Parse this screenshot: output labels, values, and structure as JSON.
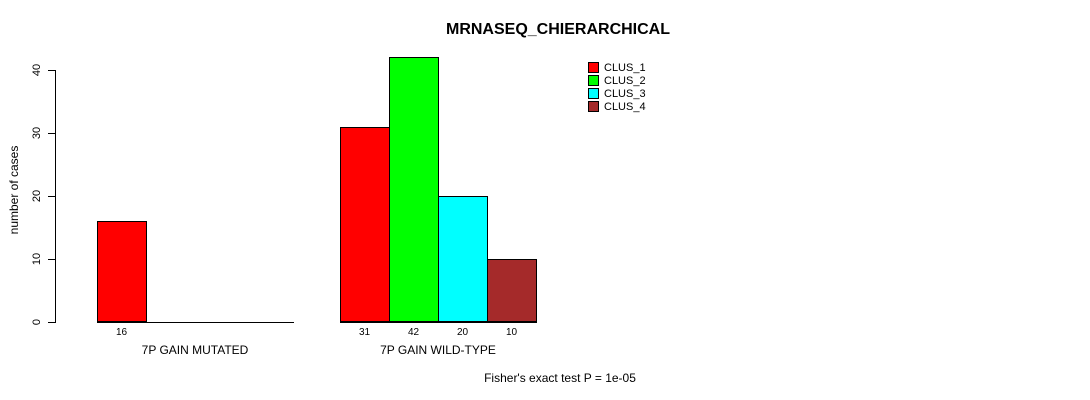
{
  "chart_data": {
    "type": "bar",
    "title": "MRNASEQ_CHIERARCHICAL",
    "ylabel": "number of cases",
    "xlabel": "",
    "ylim": [
      0,
      40
    ],
    "yticks": [
      0,
      10,
      20,
      30,
      40
    ],
    "categories": [
      "7P GAIN MUTATED",
      "7P GAIN WILD-TYPE"
    ],
    "series": [
      {
        "name": "CLUS_1",
        "color": "#ff0000",
        "values": [
          16,
          31
        ]
      },
      {
        "name": "CLUS_2",
        "color": "#00ff00",
        "values": [
          0,
          42
        ]
      },
      {
        "name": "CLUS_3",
        "color": "#00ffff",
        "values": [
          0,
          20
        ]
      },
      {
        "name": "CLUS_4",
        "color": "#a52a2a",
        "values": [
          0,
          10
        ]
      }
    ],
    "bar_value_labels": [
      [
        "16",
        "",
        "",
        ""
      ],
      [
        "31",
        "42",
        "20",
        "10"
      ]
    ],
    "annotation": "Fisher's exact test P = 1e-05",
    "legend_position": "top-right",
    "legend_items": [
      "CLUS_1",
      "CLUS_2",
      "CLUS_3",
      "CLUS_4"
    ],
    "grid": false,
    "background_color": "#ffffff",
    "axis_color": "#000000"
  }
}
